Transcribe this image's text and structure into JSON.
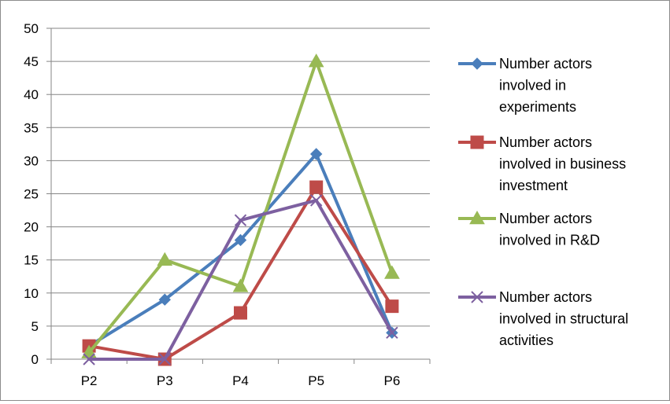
{
  "chart_data": {
    "type": "line",
    "title": "",
    "xlabel": "",
    "ylabel": "",
    "categories": [
      "P2",
      "P3",
      "P4",
      "P5",
      "P6"
    ],
    "ylim": [
      0,
      50
    ],
    "yticks": [
      0,
      5,
      10,
      15,
      20,
      25,
      30,
      35,
      40,
      45,
      50
    ],
    "grid": true,
    "legend_position": "right",
    "series": [
      {
        "name_lines": [
          "Number actors",
          "involved in",
          "experiments"
        ],
        "values": [
          2,
          9,
          18,
          31,
          4
        ],
        "color": "#4a7ebb",
        "marker": "diamond"
      },
      {
        "name_lines": [
          "Number actors",
          "involved in business",
          "investment"
        ],
        "values": [
          2,
          0,
          7,
          26,
          8
        ],
        "color": "#be4b48",
        "marker": "square"
      },
      {
        "name_lines": [
          "Number actors",
          "involved in R&D"
        ],
        "values": [
          1,
          15,
          11,
          45,
          13
        ],
        "color": "#98b954",
        "marker": "triangle"
      },
      {
        "name_lines": [
          "Number actors",
          "involved in structural",
          "activities"
        ],
        "values": [
          0,
          0,
          21,
          24,
          4
        ],
        "color": "#7d60a0",
        "marker": "x"
      }
    ]
  }
}
